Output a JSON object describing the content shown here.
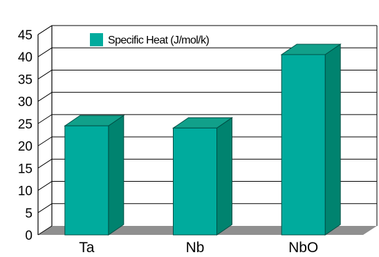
{
  "chart_data": {
    "type": "bar",
    "style": "3d",
    "title": "",
    "xlabel": "",
    "ylabel": "",
    "categories": [
      "Ta",
      "Nb",
      "NbO"
    ],
    "series": [
      {
        "name": "Specific Heat (J/mol/k)",
        "values": [
          24.5,
          24,
          40.5
        ]
      }
    ],
    "ylim": [
      0,
      45
    ],
    "yticks": [
      "0",
      "5",
      "10",
      "15",
      "20",
      "25",
      "30",
      "35",
      "40",
      "45"
    ],
    "grid": true,
    "legend_position": "top-left",
    "colors": {
      "bar_front": "#00ab9d",
      "bar_top": "#11a08a",
      "bar_side": "#00836f",
      "floor": "#8f8f8f",
      "grid": "#000000",
      "text": "#000000"
    }
  }
}
